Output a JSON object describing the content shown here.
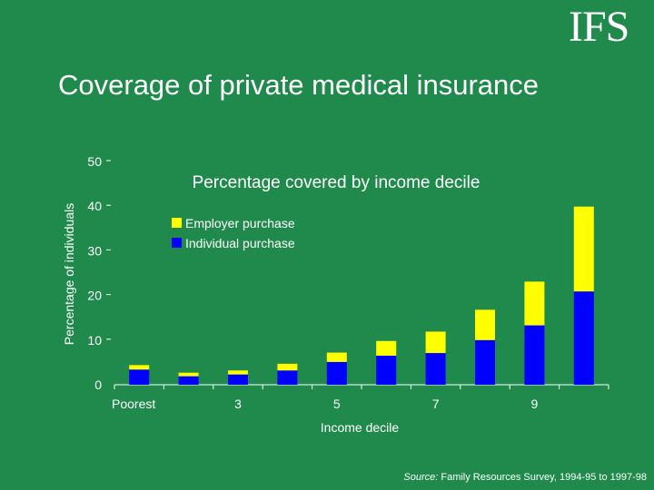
{
  "logo_text": "IFS",
  "slide_title": "Coverage of private medical insurance",
  "source": {
    "label": "Source:",
    "text": " Family Resources Survey, 1994-95 to 1997-98"
  },
  "colors": {
    "background": "#1f8a4c",
    "employer": "#ffff00",
    "individual": "#0000ff",
    "text": "#ffffff"
  },
  "chart_data": {
    "type": "bar",
    "stacked": true,
    "title": "Percentage covered by income decile",
    "xlabel": "Income decile",
    "ylabel": "Percentage of individuals",
    "ylim": [
      0,
      50
    ],
    "yticks": [
      0,
      10,
      20,
      30,
      40,
      50
    ],
    "categories": [
      "Poorest",
      "2",
      "3",
      "4",
      "5",
      "6",
      "7",
      "8",
      "9",
      "10"
    ],
    "x_tick_labels": [
      "Poorest",
      "",
      "3",
      "",
      "5",
      "",
      "7",
      "",
      "9",
      ""
    ],
    "legend_position": "top-left",
    "series": [
      {
        "name": "Individual purchase",
        "color": "#0000ff",
        "values": [
          3.4,
          1.9,
          2.3,
          3.2,
          5.1,
          6.5,
          7.1,
          10.0,
          13.3,
          20.9
        ]
      },
      {
        "name": "Employer purchase",
        "color": "#ffff00",
        "values": [
          1.0,
          0.8,
          0.9,
          1.5,
          2.1,
          3.3,
          4.8,
          6.8,
          9.8,
          19.0
        ]
      }
    ]
  }
}
